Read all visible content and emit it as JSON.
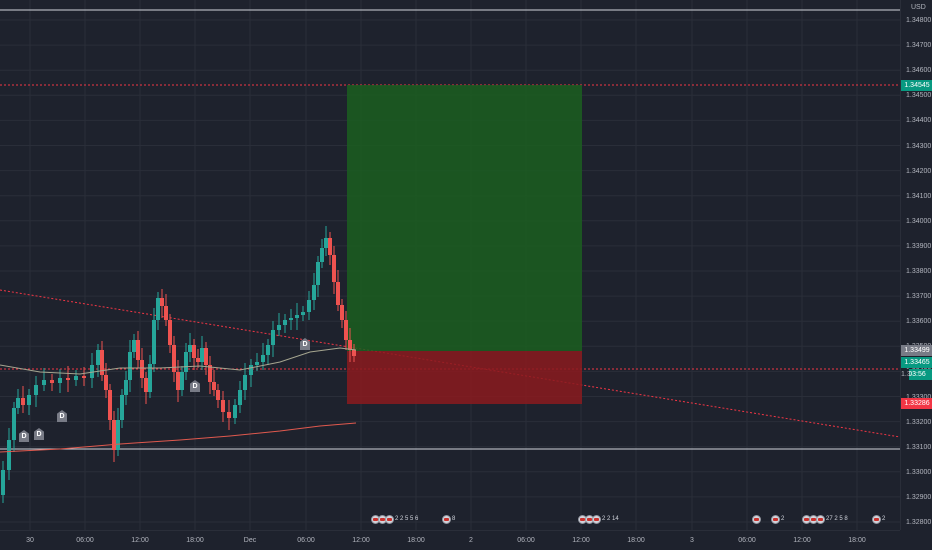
{
  "price_scale": {
    "currency": "USD",
    "ticks": [
      "1.34800",
      "1.34700",
      "1.34600",
      "1.34500",
      "1.34400",
      "1.34300",
      "1.34200",
      "1.34100",
      "1.34000",
      "1.33900",
      "1.33800",
      "1.33700",
      "1.33600",
      "1.33500",
      "1.33400",
      "1.33300",
      "1.33200",
      "1.33100",
      "1.33000",
      "1.32900",
      "1.32800"
    ],
    "tags": {
      "target": {
        "label": "1.34545",
        "color": "#089981"
      },
      "entry": {
        "label": "1.33499",
        "color": "#787b86"
      },
      "last": {
        "label": "1.33465",
        "color": "#089981"
      },
      "countdown": {
        "label": "03:56",
        "color": "#089981"
      },
      "stop": {
        "label": "1.33286",
        "color": "#f23645"
      },
      "hidden_price": {
        "label": "1.3"
      }
    }
  },
  "time_axis": {
    "labels": [
      "30",
      "06:00",
      "12:00",
      "18:00",
      "Dec",
      "06:00",
      "12:00",
      "18:00",
      "2",
      "06:00",
      "12:00",
      "18:00",
      "3",
      "06:00",
      "12:00",
      "18:00"
    ]
  },
  "events": [
    {
      "count": "2 2 5 5 6"
    },
    {
      "count": "8"
    },
    {
      "count": "2 2 14"
    },
    {
      "count": "2"
    },
    {
      "count": "27 2 5 8"
    },
    {
      "count": "2"
    }
  ],
  "dividend_marks": [
    "D",
    "D",
    "D",
    "D",
    "D"
  ],
  "colors": {
    "up": "#26a69a",
    "down": "#ef5350",
    "profit": "#1b5e20",
    "loss": "#8b1a1f",
    "bg": "#1e222d"
  }
}
